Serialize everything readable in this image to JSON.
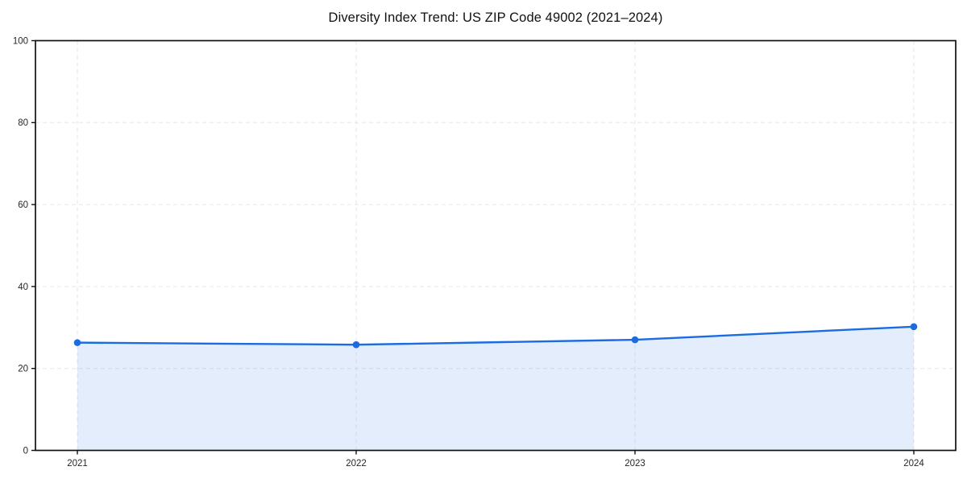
{
  "chart_data": {
    "type": "area",
    "title": "Diversity Index Trend: US ZIP Code 49002 (2021–2024)",
    "x": [
      "2021",
      "2022",
      "2023",
      "2024"
    ],
    "values": [
      26.3,
      25.8,
      27.0,
      30.2
    ],
    "xlabel": "",
    "ylabel": "",
    "ylim": [
      0,
      100
    ],
    "yticks": [
      0,
      20,
      40,
      60,
      80,
      100
    ],
    "grid": true,
    "grid_style": "dashed",
    "legend": "none",
    "colors": {
      "line": "#1b6ce0",
      "marker": "#1b6ce0",
      "fill": "#1b6ce0",
      "fill_opacity": 0.12,
      "grid": "#e6e6e6",
      "spine": "#111111",
      "tick_label": "#262626",
      "title": "#111111",
      "background": "#ffffff"
    }
  }
}
